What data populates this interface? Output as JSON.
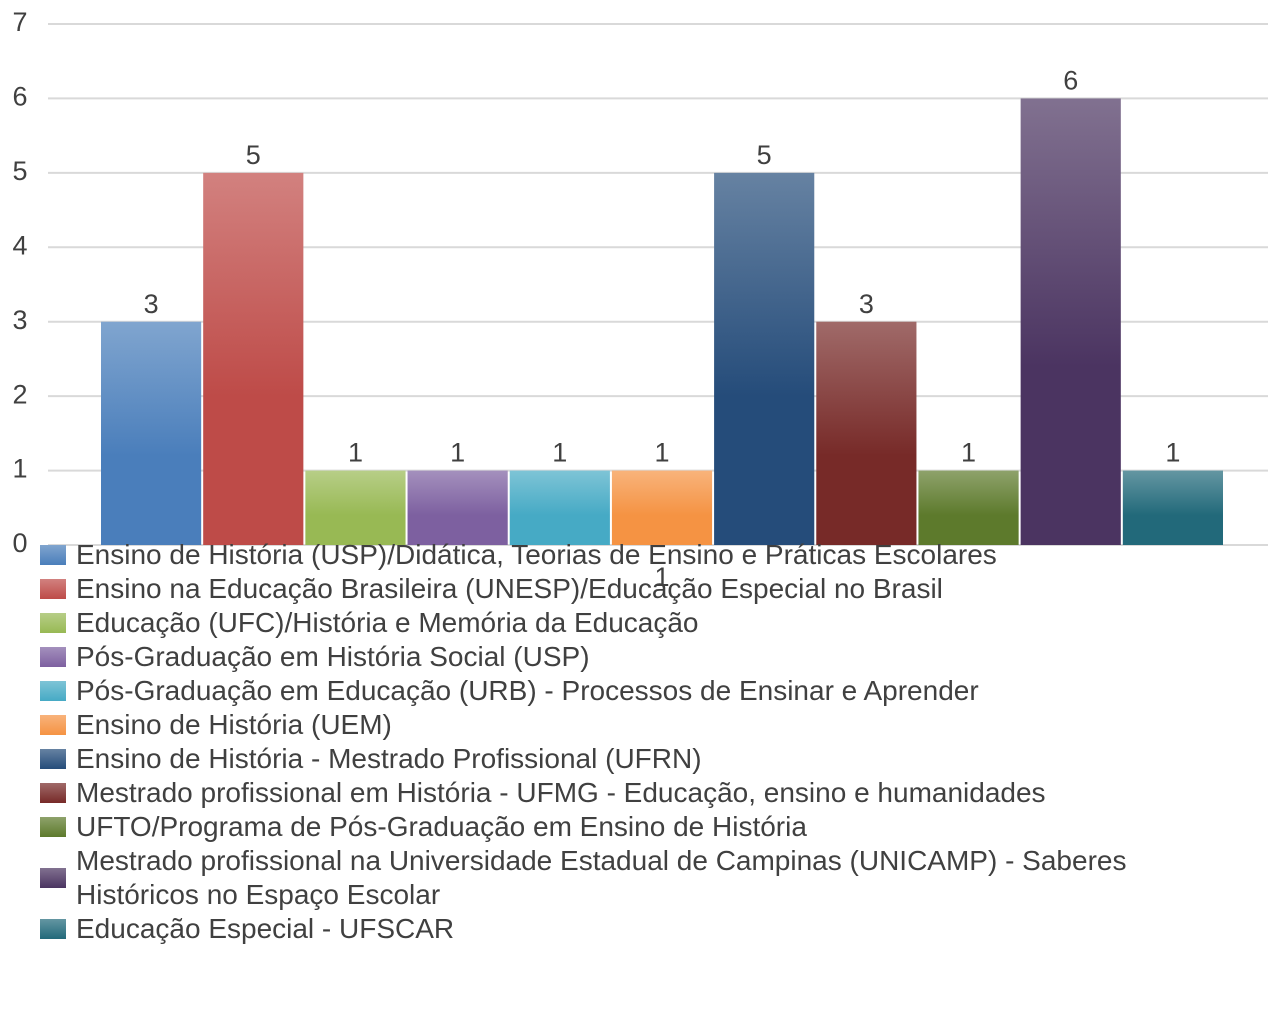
{
  "chart_data": {
    "type": "bar",
    "categories": [
      "1"
    ],
    "series": [
      {
        "name": "Ensino de História (USP)/Didática, Teorias de Ensino e Práticas Escolares",
        "color": "#4a7ebb",
        "values": [
          3
        ]
      },
      {
        "name": "Ensino na Educação Brasileira (UNESP)/Educação Especial no Brasil",
        "color": "#be4b48",
        "values": [
          5
        ]
      },
      {
        "name": "Educação (UFC)/História e Memória da Educação",
        "color": "#98b954",
        "values": [
          1
        ]
      },
      {
        "name": "Pós-Graduação em História Social (USP)",
        "color": "#7d60a0",
        "values": [
          1
        ]
      },
      {
        "name": "Pós-Graduação em Educação (URB) - Processos de Ensinar e Aprender",
        "color": "#46aac5",
        "values": [
          1
        ]
      },
      {
        "name": "Ensino de História (UEM)",
        "color": "#f59343",
        "values": [
          1
        ]
      },
      {
        "name": "Ensino de História - Mestrado Profissional (UFRN)",
        "color": "#254c7a",
        "values": [
          5
        ]
      },
      {
        "name": "Mestrado profissional em História - UFMG - Educação, ensino e humanidades",
        "color": "#772a28",
        "values": [
          3
        ]
      },
      {
        "name": "UFTO/Programa de Pós-Graduação em Ensino de História",
        "color": "#5d7a2c",
        "values": [
          1
        ]
      },
      {
        "name": "Mestrado profissional na Universidade Estadual de Campinas (UNICAMP) - Saberes Históricos no Espaço Escolar",
        "color": "#4b3461",
        "values": [
          6
        ]
      },
      {
        "name": "Educação Especial - UFSCAR",
        "color": "#22697a",
        "values": [
          1
        ]
      }
    ],
    "ylim": [
      0,
      7
    ],
    "yticks": [
      0,
      1,
      2,
      3,
      4,
      5,
      6,
      7
    ],
    "grid": true,
    "legend": "bottom"
  }
}
